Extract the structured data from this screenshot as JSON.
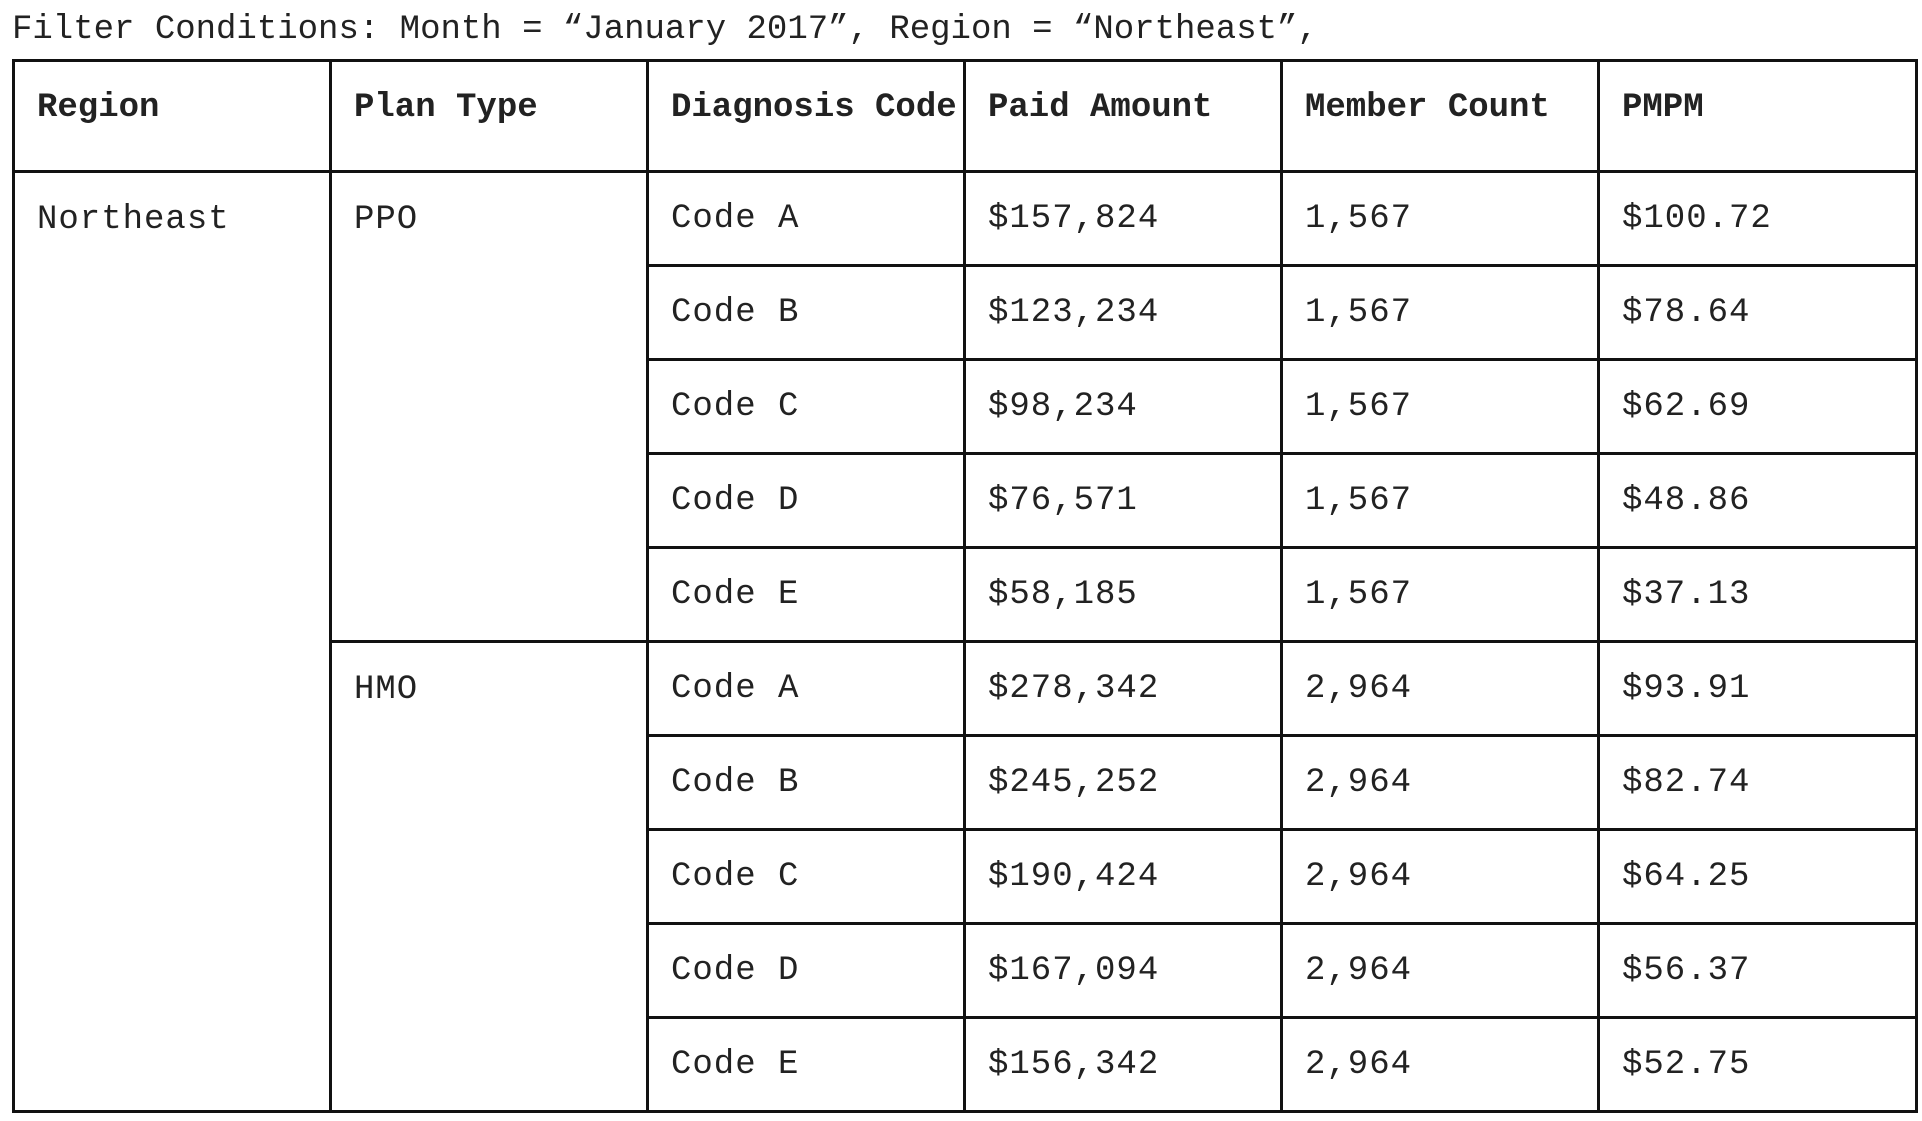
{
  "filter": {
    "text": "Filter Conditions: Month = “January 2017”, Region = “Northeast”,"
  },
  "table": {
    "headers": [
      "Region",
      "Plan Type",
      "Diagnosis Code",
      "Paid Amount",
      "Member Count",
      "PMPM"
    ],
    "region": "Northeast",
    "groups": [
      {
        "plan_type": "PPO",
        "rows": [
          {
            "code": "Code A",
            "paid": "$157,824",
            "members": "1,567",
            "pmpm": "$100.72"
          },
          {
            "code": "Code B",
            "paid": "$123,234",
            "members": "1,567",
            "pmpm": "$78.64"
          },
          {
            "code": "Code C",
            "paid": "$98,234",
            "members": "1,567",
            "pmpm": "$62.69"
          },
          {
            "code": "Code D",
            "paid": "$76,571",
            "members": "1,567",
            "pmpm": "$48.86"
          },
          {
            "code": "Code E",
            "paid": "$58,185",
            "members": "1,567",
            "pmpm": "$37.13"
          }
        ]
      },
      {
        "plan_type": "HMO",
        "rows": [
          {
            "code": "Code A",
            "paid": "$278,342",
            "members": "2,964",
            "pmpm": "$93.91"
          },
          {
            "code": "Code B",
            "paid": "$245,252",
            "members": "2,964",
            "pmpm": "$82.74"
          },
          {
            "code": "Code C",
            "paid": "$190,424",
            "members": "2,964",
            "pmpm": "$64.25"
          },
          {
            "code": "Code D",
            "paid": "$167,094",
            "members": "2,964",
            "pmpm": "$56.37"
          },
          {
            "code": "Code E",
            "paid": "$156,342",
            "members": "2,964",
            "pmpm": "$52.75"
          }
        ]
      }
    ]
  }
}
